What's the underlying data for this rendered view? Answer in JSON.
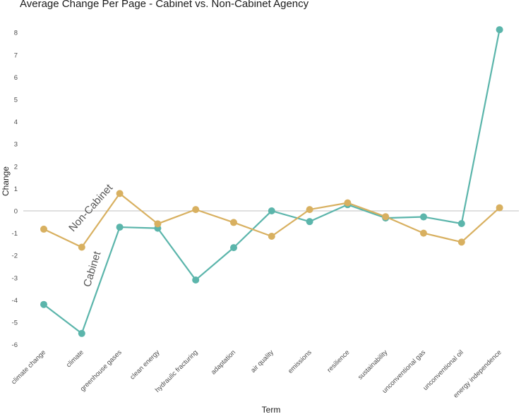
{
  "chart_data": {
    "type": "line",
    "title": "Average Change Per Page - Cabinet vs. Non-Cabinet Agency",
    "xlabel": "Term",
    "ylabel": "Change",
    "categories": [
      "climate change",
      "climate",
      "greenhouse gases",
      "clean energy",
      "hydraulic fracturing",
      "adaptation",
      "air quality",
      "emissions",
      "resilience",
      "sustainability",
      "unconventional gas",
      "unconventional oil",
      "energy independence"
    ],
    "series": [
      {
        "name": "Cabinet",
        "color": "#5bb5ab",
        "values": [
          -4.2,
          -5.5,
          -0.73,
          -0.78,
          -3.1,
          -1.65,
          0.0,
          -0.48,
          0.28,
          -0.32,
          -0.27,
          -0.57,
          8.13
        ]
      },
      {
        "name": "Non-Cabinet",
        "color": "#d8b060",
        "values": [
          -0.82,
          -1.63,
          0.78,
          -0.58,
          0.06,
          -0.52,
          -1.14,
          0.06,
          0.36,
          -0.26,
          -1.0,
          -1.4,
          0.14
        ]
      }
    ],
    "yticks": [
      -6,
      -5,
      -4,
      -3,
      -2,
      -1,
      0,
      1,
      2,
      3,
      4,
      5,
      6,
      7,
      8
    ],
    "ylim": [
      -6.2,
      8.5
    ],
    "zero_line": true,
    "grid": false,
    "legend": "direct labels on lines"
  }
}
